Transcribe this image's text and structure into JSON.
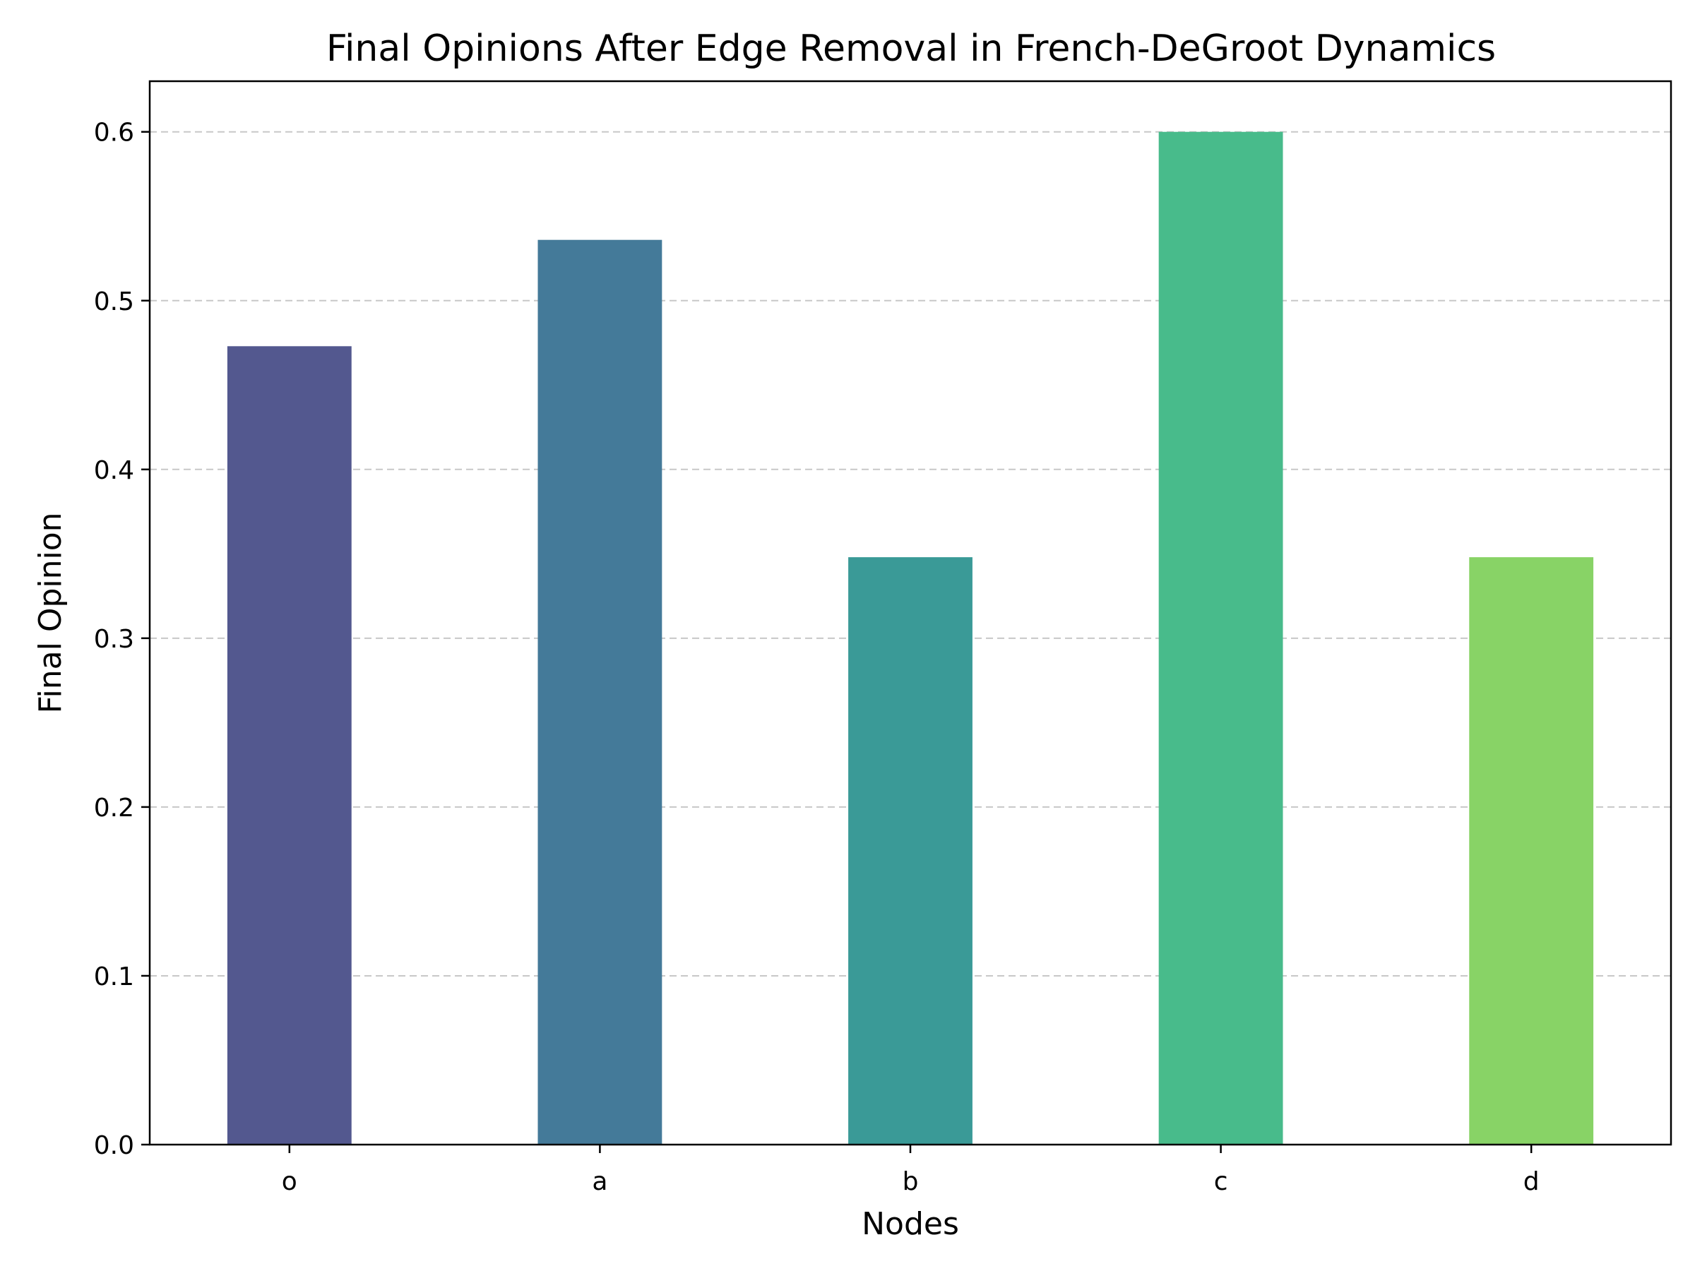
{
  "chart_data": {
    "type": "bar",
    "title": "Final Opinions After Edge Removal in French-DeGroot Dynamics",
    "xlabel": "Nodes",
    "ylabel": "Final Opinion",
    "categories": [
      "o",
      "a",
      "b",
      "c",
      "d"
    ],
    "values": [
      0.473,
      0.536,
      0.348,
      0.6,
      0.348
    ],
    "colors": [
      "#53588f",
      "#447a99",
      "#3a9a97",
      "#48bb8b",
      "#88d366"
    ],
    "ylim": [
      0,
      0.63
    ],
    "yticks": [
      0.0,
      0.1,
      0.2,
      0.3,
      0.4,
      0.5,
      0.6
    ],
    "ytick_labels": [
      "0.0",
      "0.1",
      "0.2",
      "0.3",
      "0.4",
      "0.5",
      "0.6"
    ],
    "grid": "y-dashed",
    "legend": "none"
  }
}
